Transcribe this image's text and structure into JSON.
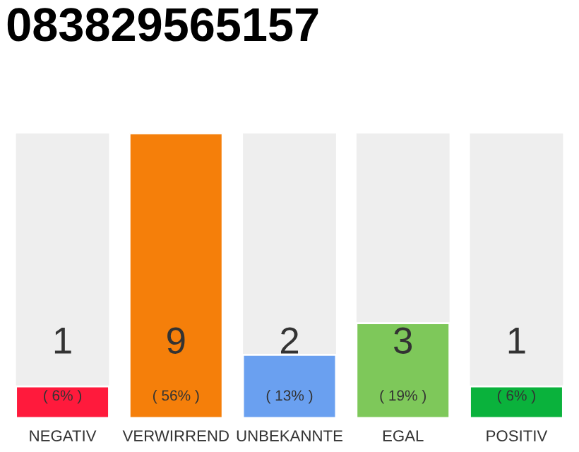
{
  "chart_data": {
    "type": "bar",
    "title": "083829565157",
    "categories": [
      "NEGATIV",
      "VERWIRREND",
      "UNBEKANNTE",
      "EGAL",
      "POSITIV"
    ],
    "values": [
      1,
      9,
      2,
      3,
      1
    ],
    "colors": [
      "#ff1a3c",
      "#f57f0a",
      "#6aa0f0",
      "#7ec85a",
      "#0ab23c"
    ],
    "ylim": [
      0,
      9
    ],
    "tick_labels": "x",
    "data_labels": true,
    "grid": false,
    "legend": false,
    "annotations": [
      "( 6% )",
      "( 56% )",
      "( 13% )",
      "( 19% )",
      "( 6% )"
    ]
  }
}
